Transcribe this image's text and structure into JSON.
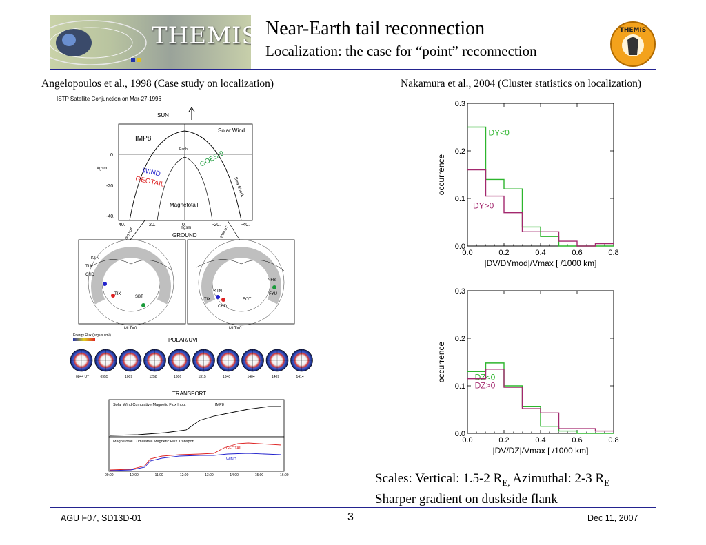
{
  "header": {
    "banner_text": "THEMIS",
    "title": "Near-Earth tail reconnection",
    "subtitle": "Localization: the case for “point” reconnection",
    "logo_text": "THEMIS"
  },
  "left": {
    "caption": "Angelopoulos et al., 1998 (Case study on localization)",
    "figure_title": "ISTP Satellite Conjunction on Mar-27-1996",
    "sun_label": "SUN",
    "orbit_panel": {
      "labels": [
        "IMP8",
        "Solar Wind",
        "Earth",
        "WIND",
        "GEOTAIL",
        "GOES-9",
        "Magnetotail",
        "Bow Shock"
      ],
      "y_label": "Xgsm",
      "x_label": "Ygsm",
      "y_ticks": [
        "0.",
        "-20.",
        "-40."
      ],
      "x_ticks": [
        "40.",
        "20.",
        "0.",
        "-20.",
        "-40."
      ],
      "time_left": "0600 UT",
      "time_right": "2000 UT"
    },
    "ground_title": "GROUND",
    "ground_left": {
      "stations": [
        "TLK",
        "CHD",
        "TIX",
        "SBT",
        "KTN"
      ],
      "mlt": "MLT=0"
    },
    "ground_right": {
      "stations": [
        "KTN",
        "TIX",
        "CHD",
        "EOT",
        "FYU",
        "NFB"
      ],
      "mlt": "MLT=0"
    },
    "uvi_title": "POLAR/UVI",
    "energy_flux_label": "Energy Flux (ergs/s cm²)",
    "uvi_times": [
      "0844 UT",
      "0955",
      "1009",
      "1258",
      "1306",
      "1315",
      "1340",
      "1404",
      "1409",
      "1414"
    ],
    "transport_title": "TRANSPORT",
    "transport_upper": {
      "label": "Solar Wind Cumulative Magnetic Flux Input",
      "series": "IMP8"
    },
    "transport_lower": {
      "label": "Magnetotail Cumulative Magnetic Flux Transport",
      "series": [
        "GEOTAIL",
        "WIND"
      ]
    },
    "transport_x_ticks": [
      "09:00",
      "10:00",
      "11:00",
      "12:00",
      "13:00",
      "14:00",
      "15:00",
      "16:00"
    ],
    "transport_x_label": "UT"
  },
  "right": {
    "caption": "Nakamura et al., 2004 (Cluster statistics on localization)"
  },
  "chart_data": [
    {
      "type": "line",
      "ylabel": "occurrence",
      "xlabel": "|DV/DYmod|/Vmax [ /1000 km]",
      "xlim": [
        0,
        0.8
      ],
      "ylim": [
        0,
        0.3
      ],
      "x_ticks": [
        "0.0",
        "0.2",
        "0.4",
        "0.6",
        "0.8"
      ],
      "y_ticks": [
        "0.0",
        "0.1",
        "0.2",
        "0.3"
      ],
      "bin_edges": [
        0,
        0.1,
        0.2,
        0.3,
        0.4,
        0.5,
        0.6,
        0.7,
        0.8
      ],
      "series": [
        {
          "name": "DY<0",
          "color": "#2db52d",
          "values": [
            0.25,
            0.14,
            0.12,
            0.04,
            0.02,
            0.0,
            0.0,
            0.0
          ]
        },
        {
          "name": "DY>0",
          "color": "#a3286e",
          "values": [
            0.16,
            0.105,
            0.07,
            0.03,
            0.03,
            0.01,
            0.0,
            0.005
          ]
        }
      ]
    },
    {
      "type": "line",
      "ylabel": "occurrence",
      "xlabel": "|DV/DZ|/Vmax [ /1000 km]",
      "xlim": [
        0,
        0.8
      ],
      "ylim": [
        0,
        0.3
      ],
      "x_ticks": [
        "0.0",
        "0.2",
        "0.4",
        "0.6",
        "0.8"
      ],
      "y_ticks": [
        "0.0",
        "0.1",
        "0.2",
        "0.3"
      ],
      "bin_edges": [
        0,
        0.1,
        0.2,
        0.3,
        0.4,
        0.5,
        0.6,
        0.7,
        0.8
      ],
      "series": [
        {
          "name": "DZ<0",
          "color": "#2db52d",
          "values": [
            0.13,
            0.148,
            0.1,
            0.057,
            0.015,
            0.005,
            0.0,
            0.0
          ]
        },
        {
          "name": "DZ>0",
          "color": "#a3286e",
          "values": [
            0.115,
            0.135,
            0.097,
            0.052,
            0.043,
            0.01,
            0.01,
            0.005
          ]
        }
      ]
    }
  ],
  "scales": {
    "line1_a": "Scales: Vertical: 1.5-2 R",
    "line1_sub1": "E,",
    "line1_b": " Azimuthal: 2-3 R",
    "line1_sub2": "E",
    "line2": "Sharper gradient on duskside flank"
  },
  "footer": {
    "left": "AGU F07, SD13D-01",
    "center": "3",
    "right": "Dec 11, 2007"
  },
  "colors": {
    "rule": "#23238f",
    "green": "#2db52d",
    "magenta": "#a3286e",
    "wind_blue": "#2222cc",
    "geotail_red": "#dd2222"
  }
}
